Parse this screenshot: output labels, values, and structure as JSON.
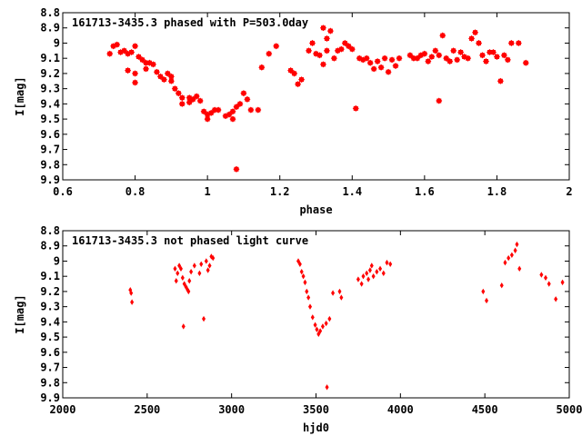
{
  "chart_data": [
    {
      "type": "scatter",
      "title": "161713-3435.3 phased with P=503.0day",
      "xlabel": "phase",
      "ylabel": "I[mag]",
      "xlim": [
        0.6,
        2.0
      ],
      "ylim": [
        9.9,
        8.8
      ],
      "y_inverted": true,
      "x_ticks": [
        "0.6",
        "0.8",
        "1",
        "1.2",
        "1.4",
        "1.6",
        "1.8",
        "2"
      ],
      "y_ticks": [
        "8.8",
        "8.9",
        "9",
        "9.1",
        "9.2",
        "9.3",
        "9.4",
        "9.5",
        "9.6",
        "9.7",
        "9.8",
        "9.9"
      ],
      "marker_color": "#ff0000",
      "grid": false,
      "series": [
        {
          "points": [
            [
              0.73,
              9.07
            ],
            [
              0.74,
              9.02
            ],
            [
              0.75,
              9.01
            ],
            [
              0.76,
              9.06
            ],
            [
              0.77,
              9.05
            ],
            [
              0.78,
              9.07
            ],
            [
              0.78,
              9.18
            ],
            [
              0.79,
              9.06
            ],
            [
              0.8,
              9.02
            ],
            [
              0.8,
              9.2
            ],
            [
              0.8,
              9.26
            ],
            [
              0.81,
              9.09
            ],
            [
              0.82,
              9.11
            ],
            [
              0.83,
              9.13
            ],
            [
              0.83,
              9.17
            ],
            [
              0.84,
              9.13
            ],
            [
              0.85,
              9.14
            ],
            [
              0.86,
              9.19
            ],
            [
              0.87,
              9.22
            ],
            [
              0.88,
              9.24
            ],
            [
              0.89,
              9.2
            ],
            [
              0.9,
              9.22
            ],
            [
              0.9,
              9.25
            ],
            [
              0.91,
              9.3
            ],
            [
              0.92,
              9.33
            ],
            [
              0.93,
              9.36
            ],
            [
              0.93,
              9.4
            ],
            [
              0.95,
              9.39
            ],
            [
              0.95,
              9.36
            ],
            [
              0.96,
              9.37
            ],
            [
              0.97,
              9.35
            ],
            [
              0.98,
              9.38
            ],
            [
              0.99,
              9.45
            ],
            [
              1.0,
              9.47
            ],
            [
              1.0,
              9.5
            ],
            [
              1.01,
              9.46
            ],
            [
              1.02,
              9.44
            ],
            [
              1.03,
              9.44
            ],
            [
              1.05,
              9.48
            ],
            [
              1.06,
              9.47
            ],
            [
              1.07,
              9.5
            ],
            [
              1.07,
              9.45
            ],
            [
              1.08,
              9.42
            ],
            [
              1.08,
              9.83
            ],
            [
              1.09,
              9.4
            ],
            [
              1.1,
              9.33
            ],
            [
              1.11,
              9.37
            ],
            [
              1.12,
              9.44
            ],
            [
              1.14,
              9.44
            ],
            [
              1.15,
              9.16
            ],
            [
              1.17,
              9.07
            ],
            [
              1.19,
              9.02
            ],
            [
              1.23,
              9.18
            ],
            [
              1.24,
              9.2
            ],
            [
              1.25,
              9.27
            ],
            [
              1.26,
              9.24
            ],
            [
              1.28,
              9.05
            ],
            [
              1.29,
              9.0
            ],
            [
              1.3,
              9.07
            ],
            [
              1.31,
              9.08
            ],
            [
              1.32,
              9.14
            ],
            [
              1.32,
              8.9
            ],
            [
              1.33,
              8.97
            ],
            [
              1.33,
              9.05
            ],
            [
              1.34,
              8.92
            ],
            [
              1.35,
              9.1
            ],
            [
              1.36,
              9.05
            ],
            [
              1.37,
              9.04
            ],
            [
              1.38,
              9.0
            ],
            [
              1.39,
              9.02
            ],
            [
              1.4,
              9.04
            ],
            [
              1.41,
              9.43
            ],
            [
              1.42,
              9.1
            ],
            [
              1.43,
              9.11
            ],
            [
              1.44,
              9.1
            ],
            [
              1.45,
              9.13
            ],
            [
              1.46,
              9.17
            ],
            [
              1.47,
              9.12
            ],
            [
              1.48,
              9.16
            ],
            [
              1.49,
              9.1
            ],
            [
              1.5,
              9.19
            ],
            [
              1.51,
              9.11
            ],
            [
              1.52,
              9.15
            ],
            [
              1.53,
              9.1
            ],
            [
              1.56,
              9.08
            ],
            [
              1.57,
              9.1
            ],
            [
              1.58,
              9.1
            ],
            [
              1.59,
              9.08
            ],
            [
              1.6,
              9.07
            ],
            [
              1.61,
              9.12
            ],
            [
              1.62,
              9.09
            ],
            [
              1.63,
              9.05
            ],
            [
              1.64,
              9.08
            ],
            [
              1.64,
              9.38
            ],
            [
              1.65,
              8.95
            ],
            [
              1.66,
              9.1
            ],
            [
              1.67,
              9.12
            ],
            [
              1.68,
              9.05
            ],
            [
              1.69,
              9.11
            ],
            [
              1.7,
              9.06
            ],
            [
              1.71,
              9.09
            ],
            [
              1.72,
              9.1
            ],
            [
              1.73,
              8.97
            ],
            [
              1.74,
              8.93
            ],
            [
              1.75,
              9.0
            ],
            [
              1.76,
              9.08
            ],
            [
              1.77,
              9.12
            ],
            [
              1.78,
              9.06
            ],
            [
              1.79,
              9.06
            ],
            [
              1.8,
              9.09
            ],
            [
              1.81,
              9.25
            ],
            [
              1.82,
              9.08
            ],
            [
              1.83,
              9.11
            ],
            [
              1.84,
              9.0
            ],
            [
              1.86,
              9.0
            ],
            [
              1.88,
              9.13
            ]
          ]
        }
      ]
    },
    {
      "type": "scatter",
      "title": "161713-3435.3 not phased light curve",
      "xlabel": "hjd0",
      "ylabel": "I[mag]",
      "xlim": [
        2000,
        5000
      ],
      "ylim": [
        9.9,
        8.8
      ],
      "y_inverted": true,
      "x_ticks": [
        "2000",
        "2500",
        "3000",
        "3500",
        "4000",
        "4500",
        "5000"
      ],
      "y_ticks": [
        "8.8",
        "8.9",
        "9",
        "9.1",
        "9.2",
        "9.3",
        "9.4",
        "9.5",
        "9.6",
        "9.7",
        "9.8",
        "9.9"
      ],
      "marker_color": "#ff0000",
      "grid": false,
      "series": [
        {
          "points": [
            [
              2400,
              9.19
            ],
            [
              2405,
              9.21
            ],
            [
              2410,
              9.27
            ],
            [
              2665,
              9.05
            ],
            [
              2672,
              9.13
            ],
            [
              2680,
              9.08
            ],
            [
              2690,
              9.03
            ],
            [
              2700,
              9.05
            ],
            [
              2710,
              9.11
            ],
            [
              2715,
              9.43
            ],
            [
              2720,
              9.15
            ],
            [
              2730,
              9.17
            ],
            [
              2740,
              9.19
            ],
            [
              2745,
              9.2
            ],
            [
              2750,
              9.13
            ],
            [
              2760,
              9.07
            ],
            [
              2780,
              9.03
            ],
            [
              2810,
              9.08
            ],
            [
              2820,
              9.02
            ],
            [
              2835,
              9.38
            ],
            [
              2850,
              9.0
            ],
            [
              2860,
              9.06
            ],
            [
              2870,
              9.03
            ],
            [
              2880,
              8.97
            ],
            [
              2890,
              8.98
            ],
            [
              3395,
              9.0
            ],
            [
              3405,
              9.02
            ],
            [
              3415,
              9.07
            ],
            [
              3425,
              9.1
            ],
            [
              3435,
              9.14
            ],
            [
              3445,
              9.2
            ],
            [
              3455,
              9.24
            ],
            [
              3465,
              9.3
            ],
            [
              3480,
              9.37
            ],
            [
              3495,
              9.42
            ],
            [
              3505,
              9.45
            ],
            [
              3515,
              9.48
            ],
            [
              3525,
              9.46
            ],
            [
              3540,
              9.43
            ],
            [
              3560,
              9.41
            ],
            [
              3565,
              9.83
            ],
            [
              3580,
              9.38
            ],
            [
              3600,
              9.21
            ],
            [
              3640,
              9.2
            ],
            [
              3650,
              9.24
            ],
            [
              3750,
              9.12
            ],
            [
              3770,
              9.15
            ],
            [
              3780,
              9.1
            ],
            [
              3800,
              9.08
            ],
            [
              3810,
              9.12
            ],
            [
              3820,
              9.06
            ],
            [
              3830,
              9.03
            ],
            [
              3840,
              9.1
            ],
            [
              3860,
              9.07
            ],
            [
              3880,
              9.05
            ],
            [
              3900,
              9.08
            ],
            [
              3920,
              9.01
            ],
            [
              3940,
              9.02
            ],
            [
              4490,
              9.2
            ],
            [
              4510,
              9.26
            ],
            [
              4600,
              9.16
            ],
            [
              4620,
              9.01
            ],
            [
              4640,
              8.98
            ],
            [
              4660,
              8.96
            ],
            [
              4680,
              8.93
            ],
            [
              4690,
              8.89
            ],
            [
              4705,
              9.05
            ],
            [
              4835,
              9.09
            ],
            [
              4860,
              9.11
            ],
            [
              4880,
              9.15
            ],
            [
              4920,
              9.25
            ],
            [
              4960,
              9.14
            ]
          ]
        }
      ]
    }
  ]
}
